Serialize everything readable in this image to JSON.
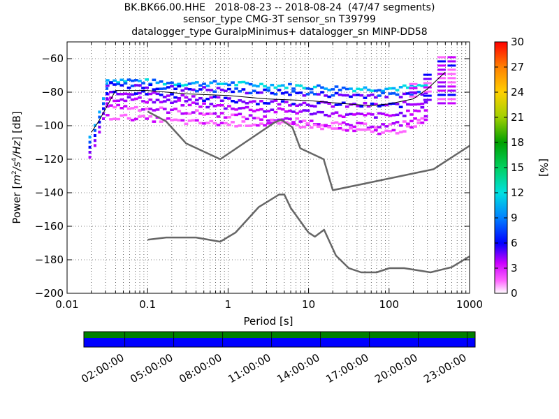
{
  "chart_data": {
    "type": "heatmap",
    "title_lines": [
      "BK.BK66.00.HHE   2018-08-23 -- 2018-08-24  (47/47 segments)",
      "sensor_type CMG-3T sensor_sn T39799",
      "datalogger_type GuralpMinimus+ datalogger_sn MINP-DD58"
    ],
    "xlabel": "Period [s]",
    "ylabel_parts": [
      "Power [",
      "m",
      "2",
      "/",
      "s",
      "4",
      "/",
      "Hz",
      "] [dB]"
    ],
    "xscale": "log",
    "xlim": [
      0.01,
      1000
    ],
    "ylim": [
      -200,
      -50
    ],
    "x_ticks": [
      0.01,
      0.1,
      1,
      10,
      100,
      1000
    ],
    "x_tick_labels": [
      "0.01",
      "0.1",
      "1",
      "10",
      "100",
      "1000"
    ],
    "y_ticks": [
      -200,
      -180,
      -160,
      -140,
      -120,
      -100,
      -80,
      -60
    ],
    "y_tick_labels": [
      "−200",
      "−180",
      "−160",
      "−140",
      "−120",
      "−100",
      "−80",
      "−60"
    ],
    "grid": true,
    "colorbar": {
      "label": "[%]",
      "range": [
        0,
        30
      ],
      "ticks": [
        0,
        3,
        6,
        9,
        12,
        15,
        18,
        21,
        24,
        27,
        30
      ],
      "tick_labels": [
        "0",
        "3",
        "6",
        "9",
        "12",
        "15",
        "18",
        "21",
        "24",
        "27",
        "30"
      ]
    },
    "noise_models": [
      {
        "model": "high",
        "x": [
          0.1,
          0.17,
          0.3,
          0.8,
          3.8,
          4.6,
          6.3,
          7.9,
          15.4,
          20,
          354.8,
          1000
        ],
        "y": [
          -91.5,
          -97.4,
          -110.5,
          -120,
          -98,
          -96.5,
          -101,
          -113.5,
          -120,
          -138.5,
          -126,
          -112
        ]
      },
      {
        "model": "low",
        "x": [
          0.1,
          0.17,
          0.4,
          0.8,
          1.24,
          2.4,
          4.3,
          5,
          6,
          10,
          12,
          15.6,
          21.9,
          31.6,
          45,
          70,
          101,
          154,
          328,
          600,
          1000
        ],
        "y": [
          -168,
          -166.7,
          -166.7,
          -169.2,
          -163.7,
          -148.6,
          -141.1,
          -141.1,
          -149,
          -163.8,
          -166.2,
          -162.1,
          -177.5,
          -185,
          -187.5,
          -187.5,
          -185,
          -185,
          -187.5,
          -184.4,
          -178
        ]
      },
      {
        "model": "median",
        "x": [
          0.02,
          0.025,
          0.03,
          0.04,
          0.1,
          0.3,
          1,
          3,
          10,
          30,
          60,
          100,
          200,
          300,
          500
        ],
        "y": [
          -104,
          -97,
          -90,
          -79,
          -79,
          -81,
          -82,
          -84,
          -85,
          -87,
          -88,
          -87,
          -84,
          -78,
          -68
        ]
      }
    ],
    "psd_bands": [
      {
        "x": [
          0.03,
          0.05,
          0.1,
          0.3,
          1,
          3,
          10,
          30,
          100,
          200,
          300
        ],
        "y": [
          -73,
          -73,
          -74,
          -75,
          -75,
          -76,
          -77,
          -78,
          -78,
          -77,
          -76
        ]
      },
      {
        "x": [
          0.03,
          0.05,
          0.1,
          0.3,
          1,
          3,
          10,
          30,
          100,
          200,
          300
        ],
        "y": [
          -76,
          -76,
          -77,
          -78,
          -79,
          -80,
          -81,
          -82,
          -82,
          -81,
          -79
        ]
      },
      {
        "x": [
          0.03,
          0.05,
          0.1,
          0.3,
          1,
          3,
          10,
          30,
          100,
          200,
          300
        ],
        "y": [
          -80,
          -80,
          -81,
          -83,
          -85,
          -86,
          -87,
          -88,
          -88,
          -87,
          -85
        ]
      },
      {
        "x": [
          0.03,
          0.05,
          0.1,
          0.3,
          1,
          3,
          10,
          30,
          100,
          200,
          300
        ],
        "y": [
          -84,
          -84,
          -85,
          -87,
          -89,
          -91,
          -92,
          -94,
          -94,
          -92,
          -89
        ]
      },
      {
        "x": [
          0.03,
          0.05,
          0.1,
          0.3,
          1,
          3,
          10,
          30,
          100,
          200,
          300
        ],
        "y": [
          -88,
          -89,
          -90,
          -92,
          -94,
          -96,
          -98,
          -100,
          -100,
          -97,
          -94
        ]
      },
      {
        "x": [
          0.03,
          0.05,
          0.1,
          0.3,
          1,
          3,
          10,
          30,
          100,
          200,
          300
        ],
        "y": [
          -95,
          -95,
          -96,
          -98,
          -99,
          -99,
          -100,
          -103,
          -104,
          -101,
          -96
        ]
      }
    ],
    "short_period_ramp": {
      "x": [
        0.019,
        0.022,
        0.025,
        0.028,
        0.031
      ],
      "y": [
        -112,
        -105,
        -97,
        -89,
        -80
      ]
    },
    "long_period_peak": {
      "x": [
        200,
        300,
        450,
        600
      ],
      "y_top": [
        -73,
        -67,
        -57,
        -57
      ],
      "y_bottom": [
        -82,
        -84,
        -86,
        -86
      ]
    }
  },
  "timeline": {
    "tick_labels": [
      "02:00:00",
      "05:00:00",
      "08:00:00",
      "11:00:00",
      "14:00:00",
      "17:00:00",
      "20:00:00",
      "23:00:00"
    ],
    "tick_hours": [
      2,
      5,
      8,
      11,
      14,
      17,
      20,
      23
    ],
    "span_hours": 24,
    "colors": {
      "top": "#008000",
      "bottom": "#0000ff"
    }
  }
}
